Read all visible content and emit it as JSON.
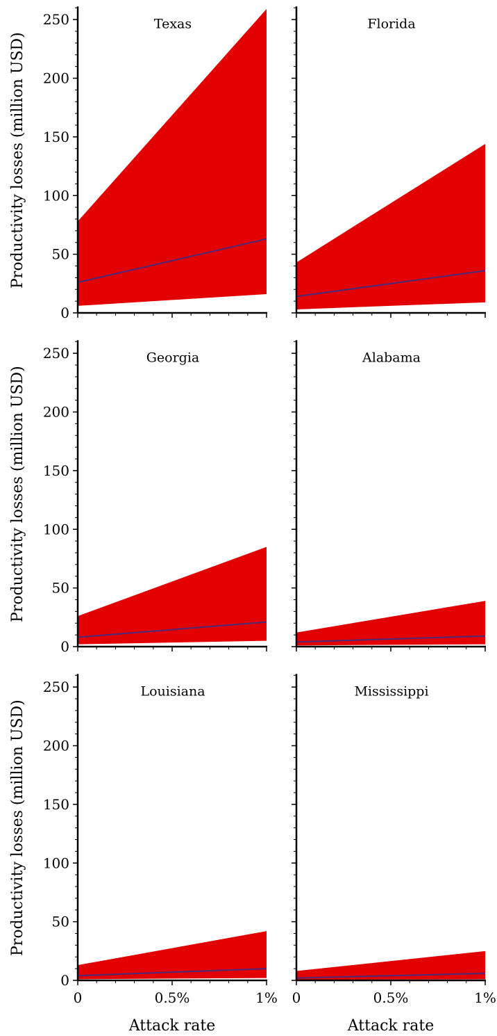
{
  "chart_data": {
    "type": "area",
    "x_unit": "attack rate (%)",
    "x": [
      0,
      1
    ],
    "xlim": [
      0,
      1
    ],
    "ylim": [
      0,
      260
    ],
    "xticks": [
      {
        "value": 0,
        "label": "0"
      },
      {
        "value": 0.5,
        "label": "0.5%"
      },
      {
        "value": 1,
        "label": "1%"
      }
    ],
    "yticks": [
      {
        "value": 0,
        "label": "0"
      },
      {
        "value": 50,
        "label": "50"
      },
      {
        "value": 100,
        "label": "100"
      },
      {
        "value": 150,
        "label": "150"
      },
      {
        "value": 200,
        "label": "200"
      },
      {
        "value": 250,
        "label": "250"
      }
    ],
    "ylabel": "Productivity losses (million USD)",
    "xlabel": "Attack rate",
    "band_color": "#e30000",
    "line_color": "#4a2a7a",
    "grid": false,
    "panels": [
      {
        "title": "Texas",
        "lower": [
          6,
          16
        ],
        "mid": [
          26,
          63
        ],
        "upper": [
          78,
          259
        ]
      },
      {
        "title": "Florida",
        "lower": [
          3,
          9
        ],
        "mid": [
          14,
          36
        ],
        "upper": [
          43,
          144
        ]
      },
      {
        "title": "Georgia",
        "lower": [
          2,
          5
        ],
        "mid": [
          8,
          21
        ],
        "upper": [
          26,
          85
        ]
      },
      {
        "title": "Alabama",
        "lower": [
          1,
          2
        ],
        "mid": [
          4,
          9
        ],
        "upper": [
          12,
          39
        ]
      },
      {
        "title": "Louisiana",
        "lower": [
          1,
          2
        ],
        "mid": [
          4,
          10
        ],
        "upper": [
          13,
          42
        ]
      },
      {
        "title": "Mississippi",
        "lower": [
          0.5,
          1
        ],
        "mid": [
          2,
          6
        ],
        "upper": [
          8,
          25
        ]
      }
    ]
  }
}
